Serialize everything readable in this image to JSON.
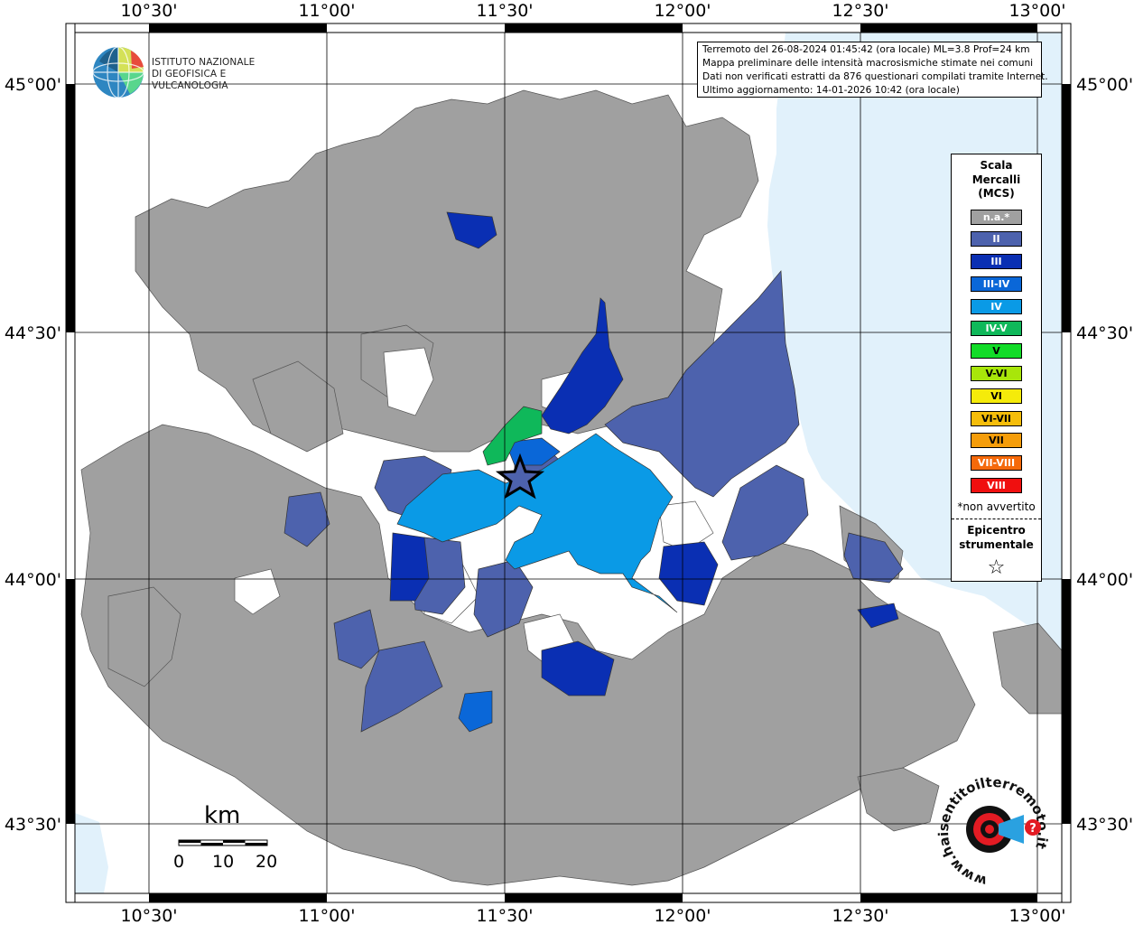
{
  "info": {
    "line1": "Terremoto del 26-08-2024 01:45:42 (ora locale) ML=3.8 Prof=24 km",
    "line2": "Mappa preliminare delle intensità macrosismiche stimate nei comuni",
    "line3": "Dati non verificati estratti da 876 questionari compilati tramite Internet.",
    "line4": "Ultimo aggiornamento: 14-01-2026 10:42 (ora locale)"
  },
  "logo": {
    "line1": "ISTITUTO NAZIONALE",
    "line2": "DI GEOFISICA E VULCANOLOGIA"
  },
  "axes": {
    "lon_top": [
      "10°30'",
      "11°00'",
      "11°30'",
      "12°00'",
      "12°30'",
      "13°00'"
    ],
    "lon_bottom": [
      "10°30'",
      "11°00'",
      "11°30'",
      "12°00'",
      "12°30'",
      "13°00'"
    ],
    "lat_left": [
      "45°00'",
      "44°30'",
      "44°00'",
      "43°30'"
    ],
    "lat_right": [
      "45°00'",
      "44°30'",
      "44°00'",
      "43°30'"
    ]
  },
  "legend": {
    "title_lines": [
      "Scala",
      "Mercalli",
      "(MCS)"
    ],
    "items": [
      {
        "label": "n.a.*",
        "color": "#a0a0a0"
      },
      {
        "label": "II",
        "color": "#4d62ad"
      },
      {
        "label": "III",
        "color": "#0a2fb3"
      },
      {
        "label": "III-IV",
        "color": "#0a67d8"
      },
      {
        "label": "IV",
        "color": "#0a9ae6"
      },
      {
        "label": "IV-V",
        "color": "#0fb85a"
      },
      {
        "label": "V",
        "color": "#12dc28"
      },
      {
        "label": "V-VI",
        "color": "#a8e60a"
      },
      {
        "label": "VI",
        "color": "#f5eb0a"
      },
      {
        "label": "VI-VII",
        "color": "#f5bd0a"
      },
      {
        "label": "VII",
        "color": "#f59d0a"
      },
      {
        "label": "VII-VIII",
        "color": "#f5690a"
      },
      {
        "label": "VIII",
        "color": "#f00f0f"
      }
    ],
    "note": "*non avvertito",
    "epicenter_lines": [
      "Epicentro",
      "strumentale"
    ],
    "star": "☆"
  },
  "scale": {
    "unit": "km",
    "labels": [
      "0",
      "10",
      "20"
    ]
  },
  "hsi_logo": {
    "ring_text": "www.haisentitoilterremoto.it",
    "mark": "?"
  },
  "colors": {
    "sea": "#e1f1fb",
    "land_blank": "#ffffff",
    "na": "#a0a0a0",
    "border": "#555555"
  }
}
